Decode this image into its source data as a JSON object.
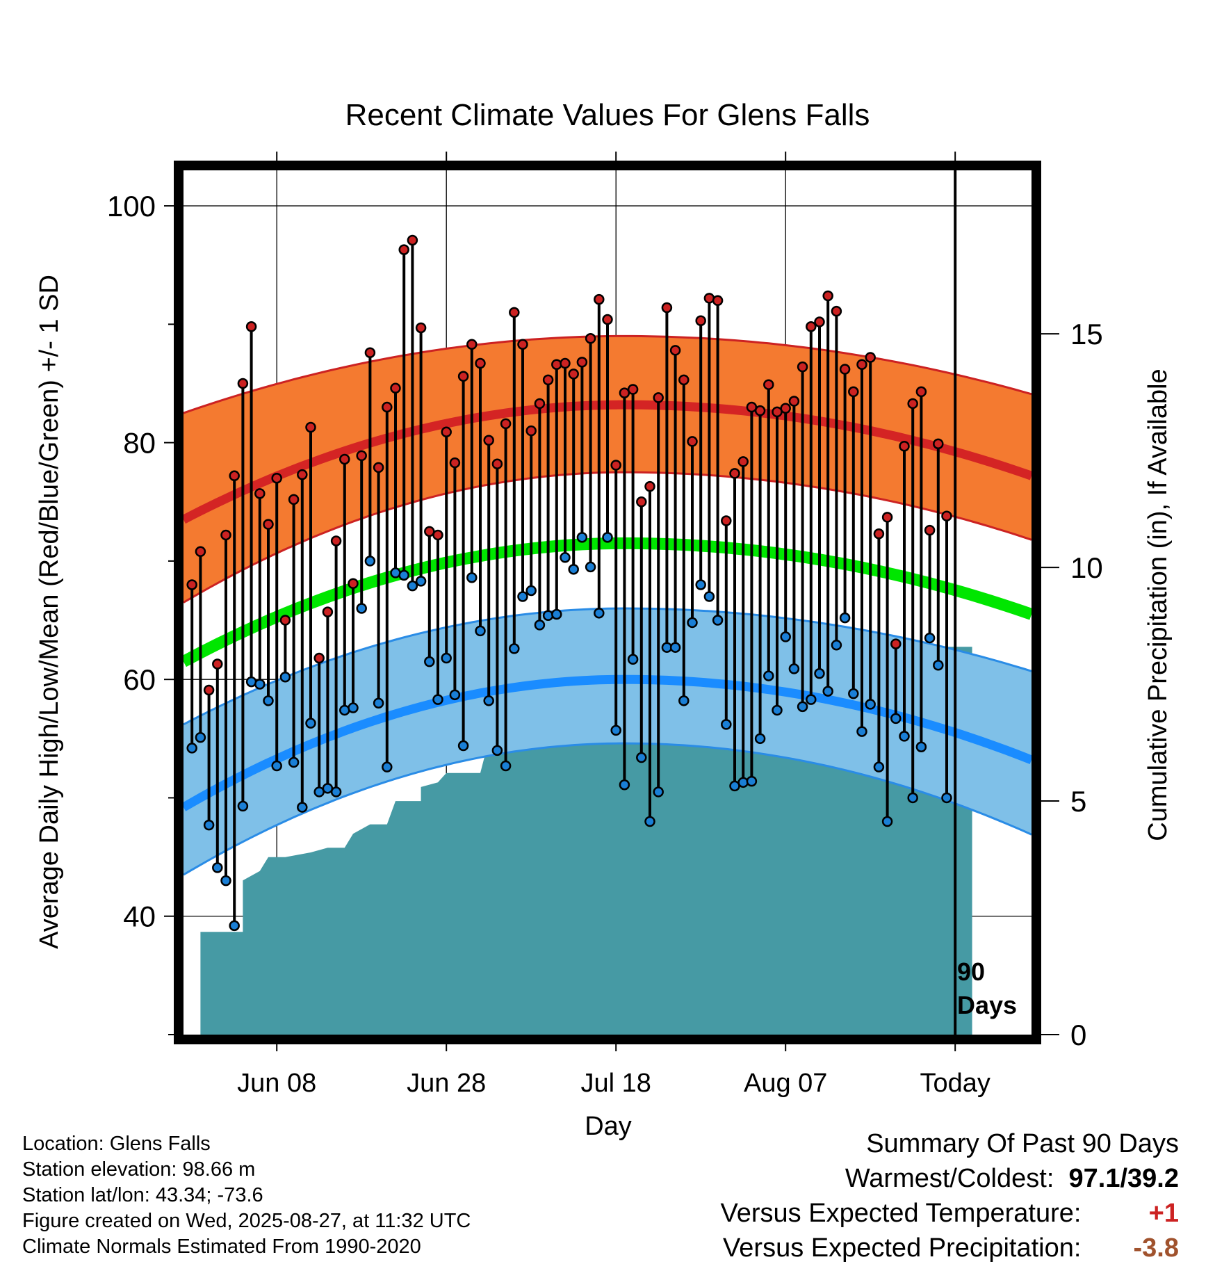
{
  "chart_data": {
    "type": "line",
    "title": "Recent Climate Values For Glens Falls",
    "xlabel": "Day",
    "ylabel": "Average Daily High/Low/Mean (Red/Blue/Green) +/- 1 SD",
    "y2label": "Cumulative Precipitation (in), If Available",
    "ylim": [
      30,
      103
    ],
    "y2lim": [
      0,
      18.5
    ],
    "yticks": [
      40,
      60,
      80,
      100
    ],
    "y2ticks": [
      0,
      5,
      10,
      15
    ],
    "xticks": [
      {
        "day": 11,
        "label": "Jun 08"
      },
      {
        "day": 31,
        "label": "Jun 28"
      },
      {
        "day": 51,
        "label": "Jul 18"
      },
      {
        "day": 71,
        "label": "Aug 07"
      },
      {
        "day": 91,
        "label": "Today"
      }
    ],
    "today_label_1": "90",
    "today_label_2": "Days",
    "normals": {
      "high_mean_start": 73.5,
      "high_mean_peak": 83.2,
      "high_mean_end": 77.2,
      "high_upper_start": 82.5,
      "high_upper_peak": 89.0,
      "high_upper_end": 84.1,
      "high_lower_start": 66.5,
      "high_lower_peak": 77.5,
      "high_lower_end": 71.8,
      "mean_start": 61.5,
      "mean_peak": 71.5,
      "mean_end": 65.5,
      "low_mean_start": 49.2,
      "low_mean_peak": 60.0,
      "low_mean_end": 53.2,
      "low_upper_start": 56.2,
      "low_upper_peak": 66.0,
      "low_upper_end": 60.7,
      "low_lower_start": 43.5,
      "low_lower_peak": 54.6,
      "low_lower_end": 46.9,
      "peak_day": 52
    },
    "highs": [
      68.0,
      70.8,
      59.1,
      61.3,
      72.2,
      77.2,
      85.0,
      89.8,
      75.7,
      73.1,
      77.0,
      65.0,
      75.2,
      77.3,
      81.3,
      61.8,
      65.7,
      71.7,
      78.6,
      68.1,
      78.9,
      87.6,
      77.9,
      83.0,
      84.6,
      96.3,
      97.1,
      89.7,
      72.5,
      72.2,
      80.9,
      78.3,
      85.6,
      88.3,
      86.7,
      80.2,
      78.2,
      81.6,
      91.0,
      88.3,
      81.0,
      83.3,
      85.3,
      86.6,
      86.7,
      85.8,
      86.8,
      88.8,
      92.1,
      90.4,
      78.1,
      84.2,
      84.5,
      75.0,
      76.3,
      83.8,
      91.4,
      87.8,
      85.3,
      80.1,
      90.3,
      92.2,
      92.0,
      73.4,
      77.4,
      78.4,
      83.0,
      82.7,
      84.9,
      82.6,
      82.9,
      83.5,
      86.4,
      89.8,
      90.2,
      92.4,
      91.1,
      86.2,
      84.3,
      86.6,
      87.2,
      72.3,
      73.7,
      63.0,
      79.7,
      83.3,
      84.3,
      72.6,
      79.9,
      73.8
    ],
    "lows": [
      54.2,
      55.1,
      47.7,
      44.1,
      43.0,
      39.2,
      49.3,
      59.8,
      59.6,
      58.2,
      52.7,
      60.2,
      53.0,
      49.2,
      56.3,
      50.5,
      50.8,
      50.5,
      57.4,
      57.6,
      66.0,
      70.0,
      58.0,
      52.6,
      69.0,
      68.8,
      67.9,
      68.3,
      61.5,
      58.3,
      61.8,
      58.7,
      54.4,
      68.6,
      64.1,
      58.2,
      54.0,
      52.7,
      62.6,
      67.0,
      67.5,
      64.6,
      65.4,
      65.5,
      70.3,
      69.3,
      72.0,
      69.5,
      65.6,
      72.0,
      55.7,
      51.1,
      61.7,
      53.4,
      48.0,
      50.5,
      62.7,
      62.7,
      58.2,
      64.8,
      68.0,
      67.0,
      65.0,
      56.2,
      51.0,
      51.3,
      51.4,
      55.0,
      60.3,
      57.4,
      63.6,
      60.9,
      57.7,
      58.3,
      60.5,
      59.0,
      62.9,
      65.2,
      58.8,
      55.6,
      57.9,
      52.6,
      48.0,
      56.7,
      55.2,
      50.0,
      54.3,
      63.5,
      61.2,
      50.0
    ],
    "precip": {
      "days": [
        0,
        1,
        2,
        2,
        7,
        7,
        9,
        10,
        12,
        15,
        17,
        19,
        20,
        22,
        24,
        25,
        28,
        28,
        30,
        31,
        35,
        36,
        41,
        42,
        44,
        47,
        52,
        53,
        58,
        59,
        61,
        64,
        67,
        75,
        77,
        80,
        83,
        84,
        87,
        88,
        91,
        93
      ],
      "values": [
        0,
        0,
        0,
        2.2,
        2.2,
        3.3,
        3.5,
        3.8,
        3.8,
        3.9,
        4.0,
        4.0,
        4.3,
        4.5,
        4.5,
        5.0,
        5.0,
        5.3,
        5.4,
        5.6,
        5.6,
        6.3,
        6.3,
        6.4,
        6.6,
        6.6,
        6.7,
        6.9,
        6.9,
        7.3,
        7.3,
        7.5,
        7.5,
        7.6,
        7.6,
        8.0,
        8.0,
        8.2,
        8.2,
        8.3,
        8.3,
        8.3
      ]
    },
    "colors": {
      "high_band": "#f47a30",
      "high_line": "#d42424",
      "high_edge": "#cc2222",
      "mean_line": "#00e600",
      "low_band": "#7fc0e8",
      "low_line": "#1a8cff",
      "low_edge": "#2a8ce6",
      "precip_fill": "#469aa4",
      "high_marker": "#cc2222",
      "low_marker": "#1a7fd6",
      "warm_value": "#cc2222",
      "precip_value": "#a0522d"
    }
  },
  "info": {
    "location": "Location: Glens Falls",
    "elevation": "Station elevation: 98.66 m",
    "latlon": "Station lat/lon: 43.34; -73.6",
    "created": "Figure created on Wed, 2025-08-27, at 11:32 UTC",
    "normals": "Climate Normals Estimated From 1990-2020"
  },
  "summary": {
    "title": "Summary Of Past 90 Days",
    "warmest_label": "Warmest/Coldest:",
    "warmest_value": "97.1/39.2",
    "temp_label": "Versus Expected Temperature:",
    "temp_value": "+1",
    "precip_label": "Versus Expected Precipitation:",
    "precip_value": "-3.8"
  }
}
